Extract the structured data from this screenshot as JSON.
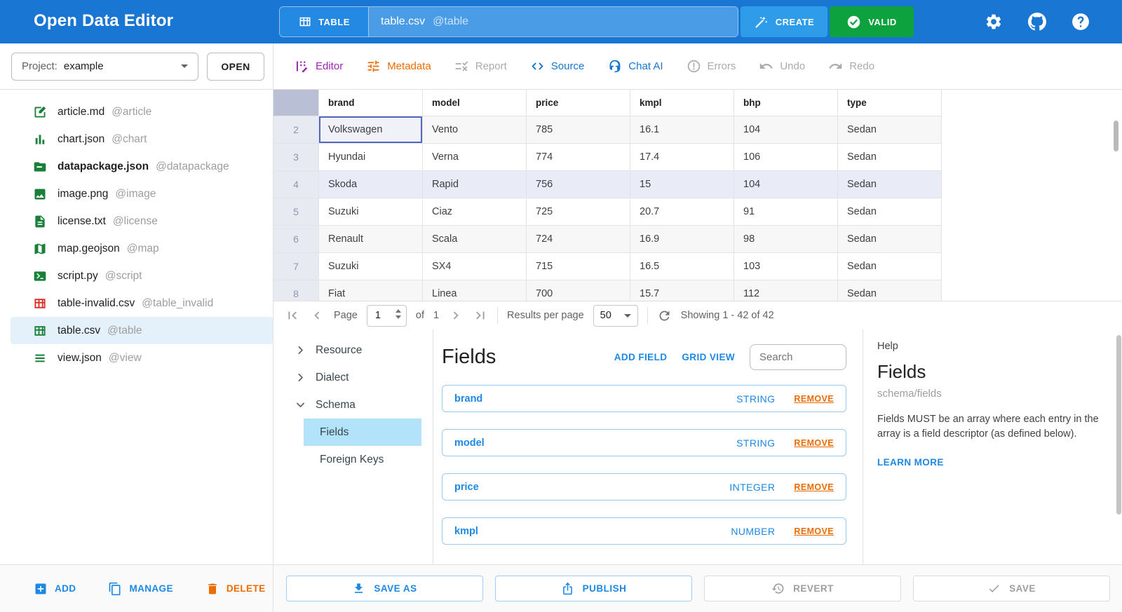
{
  "header": {
    "app_title": "Open Data Editor",
    "view_switch": {
      "label": "TABLE",
      "icon": "table-grid-icon"
    },
    "file_name": "table.csv",
    "file_alias": "@table",
    "create_button": "CREATE",
    "valid_button": "VALID",
    "colors": {
      "header_bg": "#1976d2",
      "valid_green": "#0ea23e",
      "create_blue": "#2f9ce9"
    }
  },
  "project_bar": {
    "label": "Project:",
    "value": "example",
    "open_button": "OPEN"
  },
  "toolbar": {
    "tabs": [
      {
        "label": "Editor",
        "icon": "editor-icon",
        "color": "#9c27b0",
        "disabled": false
      },
      {
        "label": "Metadata",
        "icon": "metadata-icon",
        "color": "#ed6c02",
        "disabled": false
      },
      {
        "label": "Report",
        "icon": "report-icon",
        "disabled": true
      },
      {
        "label": "Source",
        "icon": "source-icon",
        "color": "#1976d2",
        "disabled": false
      },
      {
        "label": "Chat AI",
        "icon": "chat-ai-icon",
        "color": "#1976d2",
        "disabled": false
      },
      {
        "label": "Errors",
        "icon": "errors-icon",
        "disabled": true
      },
      {
        "label": "Undo",
        "icon": "undo-icon",
        "disabled": true
      },
      {
        "label": "Redo",
        "icon": "redo-icon",
        "disabled": true
      }
    ]
  },
  "sidebar": {
    "files": [
      {
        "name": "article.md",
        "alias": "@article",
        "icon": "markdown-file-icon",
        "color": "#188038"
      },
      {
        "name": "chart.json",
        "alias": "@chart",
        "icon": "chart-file-icon",
        "color": "#188038"
      },
      {
        "name": "datapackage.json",
        "alias": "@datapackage",
        "icon": "folder-icon",
        "color": "#188038",
        "bold": true
      },
      {
        "name": "image.png",
        "alias": "@image",
        "icon": "image-file-icon",
        "color": "#188038"
      },
      {
        "name": "license.txt",
        "alias": "@license",
        "icon": "document-file-icon",
        "color": "#188038"
      },
      {
        "name": "map.geojson",
        "alias": "@map",
        "icon": "map-file-icon",
        "color": "#188038"
      },
      {
        "name": "script.py",
        "alias": "@script",
        "icon": "terminal-file-icon",
        "color": "#188038"
      },
      {
        "name": "table-invalid.csv",
        "alias": "@table_invalid",
        "icon": "table-file-icon",
        "color": "#d93025"
      },
      {
        "name": "table.csv",
        "alias": "@table",
        "icon": "table-file-icon",
        "color": "#188038",
        "selected": true
      },
      {
        "name": "view.json",
        "alias": "@view",
        "icon": "list-file-icon",
        "color": "#188038"
      }
    ],
    "actions": [
      {
        "label": "ADD",
        "icon": "add-icon",
        "color": "#1e88e5"
      },
      {
        "label": "MANAGE",
        "icon": "manage-icon",
        "color": "#1e88e5"
      },
      {
        "label": "DELETE",
        "icon": "delete-icon",
        "color": "#ed6c02"
      }
    ]
  },
  "table": {
    "columns": [
      "brand",
      "model",
      "price",
      "kmpl",
      "bhp",
      "type"
    ],
    "rows": [
      {
        "num": "2",
        "cells": [
          "Volkswagen",
          "Vento",
          "785",
          "16.1",
          "104",
          "Sedan"
        ]
      },
      {
        "num": "3",
        "cells": [
          "Hyundai",
          "Verna",
          "774",
          "17.4",
          "106",
          "Sedan"
        ]
      },
      {
        "num": "4",
        "cells": [
          "Skoda",
          "Rapid",
          "756",
          "15",
          "104",
          "Sedan"
        ],
        "highlighted": true
      },
      {
        "num": "5",
        "cells": [
          "Suzuki",
          "Ciaz",
          "725",
          "20.7",
          "91",
          "Sedan"
        ]
      },
      {
        "num": "6",
        "cells": [
          "Renault",
          "Scala",
          "724",
          "16.9",
          "98",
          "Sedan"
        ]
      },
      {
        "num": "7",
        "cells": [
          "Suzuki",
          "SX4",
          "715",
          "16.5",
          "103",
          "Sedan"
        ]
      },
      {
        "num": "8",
        "cells": [
          "Fiat",
          "Linea",
          "700",
          "15.7",
          "112",
          "Sedan"
        ]
      }
    ],
    "selected_cell": {
      "row_num": "2",
      "column": "brand"
    }
  },
  "pagination": {
    "page_label": "Page",
    "page_value": "1",
    "of_label": "of",
    "total_pages": "1",
    "results_label": "Results per page",
    "per_page": "50",
    "showing": "Showing 1 - 42 of 42"
  },
  "schema_editor": {
    "tree": [
      {
        "label": "Resource",
        "expanded": false
      },
      {
        "label": "Dialect",
        "expanded": false
      },
      {
        "label": "Schema",
        "expanded": true,
        "children": [
          {
            "label": "Fields",
            "selected": true
          },
          {
            "label": "Foreign Keys",
            "selected": false
          }
        ]
      }
    ],
    "section_title": "Fields",
    "add_field_label": "ADD FIELD",
    "grid_view_label": "GRID VIEW",
    "search_placeholder": "Search",
    "fields": [
      {
        "name": "brand",
        "type": "STRING",
        "remove_label": "REMOVE"
      },
      {
        "name": "model",
        "type": "STRING",
        "remove_label": "REMOVE"
      },
      {
        "name": "price",
        "type": "INTEGER",
        "remove_label": "REMOVE"
      },
      {
        "name": "kmpl",
        "type": "NUMBER",
        "remove_label": "REMOVE"
      }
    ]
  },
  "help_panel": {
    "label": "Help",
    "title": "Fields",
    "path": "schema/fields",
    "body": "Fields MUST be an array where each entry in the array is a field descriptor (as defined below).",
    "learn_more": "LEARN MORE"
  },
  "footer": {
    "buttons": [
      {
        "label": "SAVE AS",
        "icon": "save-as-icon",
        "enabled": true
      },
      {
        "label": "PUBLISH",
        "icon": "publish-icon",
        "enabled": true
      },
      {
        "label": "REVERT",
        "icon": "revert-icon",
        "enabled": false
      },
      {
        "label": "SAVE",
        "icon": "save-icon",
        "enabled": false
      }
    ]
  }
}
